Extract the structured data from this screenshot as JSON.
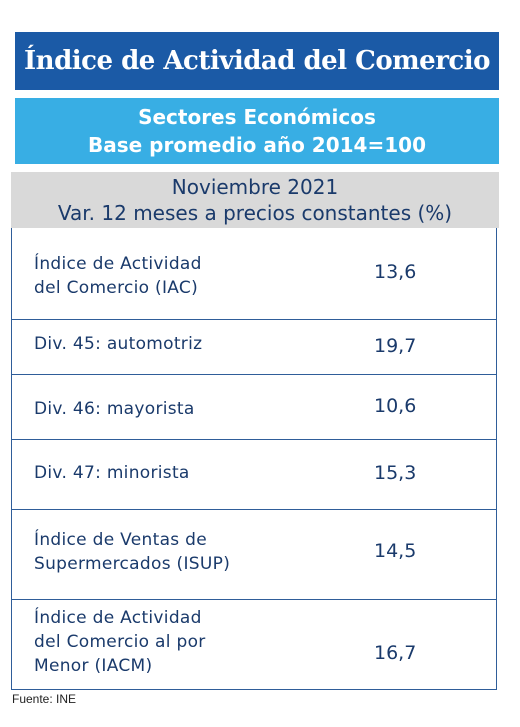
{
  "title": "Índice de Actividad del Comercio",
  "subtitle": {
    "line1": "Sectores Económicos",
    "line2": "Base promedio año 2014=100"
  },
  "period": {
    "line1": "Noviembre 2021",
    "line2": "Var. 12 meses a precios constantes (%)"
  },
  "rows": [
    {
      "label_lines": [
        "Índice de Actividad",
        "del Comercio (IAC)"
      ],
      "value": "13,6"
    },
    {
      "label_lines": [
        "Div. 45: automotriz"
      ],
      "value": "19,7"
    },
    {
      "label_lines": [
        "Div. 46: mayorista"
      ],
      "value": "10,6"
    },
    {
      "label_lines": [
        "Div. 47: minorista"
      ],
      "value": "15,3"
    },
    {
      "label_lines": [
        "Índice de Ventas de",
        "Supermercados (ISUP)"
      ],
      "value": "14,5"
    },
    {
      "label_lines": [
        "Índice de Actividad",
        "del Comercio al por",
        "Menor (IACM)"
      ],
      "value": "16,7"
    }
  ],
  "source": "Fuente: INE",
  "colors": {
    "title_bg": "#1b5aa6",
    "subtitle_bg": "#38aee4",
    "period_bg": "#d9d9d9",
    "text_dark": "#1a3a6b"
  }
}
